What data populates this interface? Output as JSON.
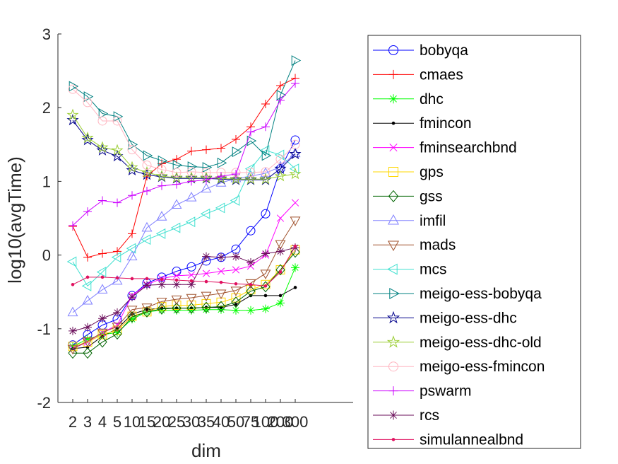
{
  "chart_data": {
    "type": "line",
    "xlabel": "dim",
    "ylabel": "log10(avgTime)",
    "ylim": [
      -2,
      3
    ],
    "x_ticks": [
      "2",
      "3",
      "4",
      "5",
      "10",
      "15",
      "20",
      "25",
      "30",
      "35",
      "40",
      "50",
      "75",
      "100",
      "200",
      "300"
    ],
    "y_ticks": [
      "-2",
      "-1",
      "0",
      "1",
      "2",
      "3"
    ],
    "grid": false,
    "legend_position": "right-outside",
    "series": [
      {
        "name": "bobyqa",
        "color": "#0000ff",
        "marker": "circle",
        "values": [
          -1.22,
          -1.08,
          -0.95,
          -0.87,
          -0.55,
          -0.38,
          -0.3,
          -0.22,
          -0.16,
          -0.08,
          -0.03,
          0.08,
          0.33,
          0.56,
          1.17,
          1.56
        ]
      },
      {
        "name": "cmaes",
        "color": "#ff0000",
        "marker": "plus",
        "values": [
          0.39,
          -0.03,
          0.02,
          0.05,
          0.29,
          1.07,
          1.24,
          1.3,
          1.41,
          1.43,
          1.45,
          1.57,
          1.74,
          2.05,
          2.3,
          2.4
        ]
      },
      {
        "name": "dhc",
        "color": "#00ff00",
        "marker": "asterisk",
        "values": [
          -1.24,
          -1.14,
          -1.08,
          -1.05,
          -0.87,
          -0.77,
          -0.75,
          -0.75,
          -0.75,
          -0.74,
          -0.74,
          -0.75,
          -0.75,
          -0.73,
          -0.65,
          -0.17
        ]
      },
      {
        "name": "fmincon",
        "color": "#000000",
        "marker": "point",
        "values": [
          -1.27,
          -1.25,
          -1.1,
          -1.0,
          -0.8,
          -0.74,
          -0.72,
          -0.72,
          -0.72,
          -0.71,
          -0.71,
          -0.67,
          -0.55,
          -0.55,
          -0.55,
          -0.44
        ]
      },
      {
        "name": "fminsearchbnd",
        "color": "#ff00ff",
        "marker": "x",
        "values": [
          -1.27,
          -1.18,
          -1.05,
          -0.95,
          -0.55,
          -0.4,
          -0.32,
          -0.28,
          -0.27,
          -0.25,
          -0.22,
          -0.2,
          -0.15,
          0.0,
          0.5,
          0.71
        ]
      },
      {
        "name": "gps",
        "color": "#ffd700",
        "marker": "square",
        "values": [
          -1.24,
          -1.18,
          -1.08,
          -1.02,
          -0.83,
          -0.77,
          -0.7,
          -0.68,
          -0.68,
          -0.66,
          -0.64,
          -0.58,
          -0.47,
          -0.4,
          -0.2,
          0.07
        ]
      },
      {
        "name": "gss",
        "color": "#006400",
        "marker": "diamond",
        "values": [
          -1.33,
          -1.33,
          -1.18,
          -1.07,
          -0.84,
          -0.77,
          -0.73,
          -0.72,
          -0.72,
          -0.71,
          -0.7,
          -0.64,
          -0.49,
          -0.43,
          -0.2,
          0.04
        ]
      },
      {
        "name": "imfil",
        "color": "#8080ff",
        "marker": "triangle-up",
        "values": [
          -0.78,
          -0.62,
          -0.47,
          -0.35,
          -0.02,
          0.37,
          0.52,
          0.68,
          0.78,
          0.9,
          0.98,
          1.04,
          1.07,
          1.11,
          1.2,
          1.38
        ]
      },
      {
        "name": "mads",
        "color": "#a0522d",
        "marker": "triangle-down",
        "values": [
          -1.27,
          -1.17,
          -1.05,
          -0.97,
          -0.74,
          -0.71,
          -0.63,
          -0.6,
          -0.58,
          -0.55,
          -0.52,
          -0.48,
          -0.38,
          -0.25,
          0.15,
          0.47
        ]
      },
      {
        "name": "mcs",
        "color": "#40e0d0",
        "marker": "triangle-left",
        "values": [
          -0.09,
          -0.42,
          -0.23,
          -0.03,
          0.09,
          0.21,
          0.29,
          0.37,
          0.45,
          0.56,
          0.64,
          0.74,
          1.17,
          1.42,
          1.36,
          1.17
        ]
      },
      {
        "name": "meigo-ess-bobyqa",
        "color": "#008080",
        "marker": "triangle-right",
        "values": [
          2.29,
          2.15,
          1.92,
          1.88,
          1.5,
          1.35,
          1.28,
          1.22,
          1.2,
          1.19,
          1.25,
          1.4,
          1.55,
          1.35,
          2.17,
          2.64
        ]
      },
      {
        "name": "meigo-ess-dhc",
        "color": "#00008b",
        "marker": "star",
        "values": [
          1.83,
          1.56,
          1.42,
          1.34,
          1.15,
          1.09,
          1.06,
          1.04,
          1.04,
          1.04,
          1.03,
          1.02,
          1.02,
          1.02,
          1.17,
          1.37
        ]
      },
      {
        "name": "meigo-ess-dhc-old",
        "color": "#9acd32",
        "marker": "star",
        "values": [
          1.9,
          1.59,
          1.46,
          1.42,
          1.19,
          1.12,
          1.07,
          1.05,
          1.05,
          1.05,
          1.04,
          1.03,
          1.03,
          1.03,
          1.07,
          1.1
        ]
      },
      {
        "name": "meigo-ess-fmincon",
        "color": "#ffb6c1",
        "marker": "circle",
        "values": [
          2.25,
          2.07,
          1.82,
          1.82,
          1.43,
          1.22,
          1.16,
          1.12,
          1.13,
          1.12,
          1.12,
          1.12,
          1.12,
          1.13,
          1.3,
          1.5
        ]
      },
      {
        "name": "pswarm",
        "color": "#cc00ff",
        "marker": "plus",
        "values": [
          0.4,
          0.59,
          0.74,
          0.71,
          0.81,
          0.87,
          0.94,
          0.96,
          1.0,
          1.02,
          1.07,
          1.1,
          1.67,
          1.74,
          2.1,
          2.33
        ]
      },
      {
        "name": "rcs",
        "color": "#6a0d5a",
        "marker": "asterisk",
        "values": [
          -1.03,
          -0.98,
          -0.86,
          -0.78,
          -0.57,
          -0.41,
          -0.4,
          -0.4,
          -0.4,
          -0.02,
          -0.03,
          -0.02,
          -0.1,
          0.02,
          0.05,
          0.1
        ]
      },
      {
        "name": "simulannealbnd",
        "color": "#e0115f",
        "marker": "point",
        "values": [
          -0.4,
          -0.3,
          -0.3,
          -0.31,
          -0.32,
          -0.32,
          -0.33,
          -0.34,
          -0.35,
          -0.36,
          -0.37,
          -0.39,
          -0.4,
          -0.42,
          -0.23,
          0.12
        ]
      }
    ]
  }
}
